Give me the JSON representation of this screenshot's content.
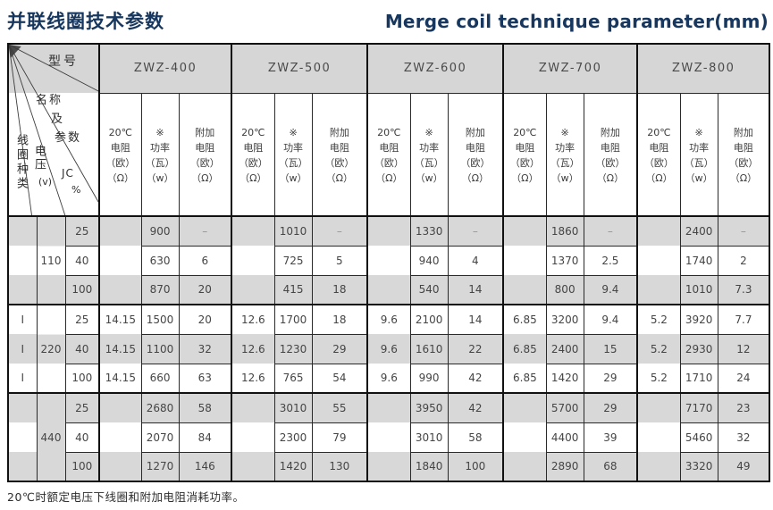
{
  "page": {
    "title_zh": "并联线圈技术参数",
    "title_en": "Merge coil technique parameter(mm)",
    "footnote": "20℃时额定电压下线圈和附加电阻消耗功率。"
  },
  "table": {
    "corner": {
      "model_label": "型号",
      "name_param_label_1": "名称",
      "name_param_label_2": "及",
      "name_param_label_3": "参数",
      "coil_type_label": "线圈种类",
      "voltage_label": "电压",
      "voltage_unit": "(v)",
      "jc_label": "JC",
      "jc_unit": "%"
    },
    "models": [
      "ZWZ-400",
      "ZWZ-500",
      "ZWZ-600",
      "ZWZ-700",
      "ZWZ-800"
    ],
    "sub_headers": {
      "resistance": [
        "20℃",
        "电阻",
        "（欧）",
        "（Ω）"
      ],
      "power": [
        "※",
        "功率",
        "（瓦）",
        "（w）"
      ],
      "extra": [
        "附加",
        "电阻",
        "（欧）",
        "（Ω）"
      ]
    },
    "groups": [
      {
        "coil_type": "",
        "voltage": "110",
        "rows": [
          {
            "jc": "25",
            "cells": [
              [
                "",
                "900",
                "–"
              ],
              [
                "",
                "1010",
                "–"
              ],
              [
                "",
                "1330",
                "–"
              ],
              [
                "",
                "1860",
                "–"
              ],
              [
                "",
                "2400",
                "–"
              ]
            ]
          },
          {
            "jc": "40",
            "cells": [
              [
                "",
                "630",
                "6"
              ],
              [
                "",
                "725",
                "5"
              ],
              [
                "",
                "940",
                "4"
              ],
              [
                "",
                "1370",
                "2.5"
              ],
              [
                "",
                "1740",
                "2"
              ]
            ]
          },
          {
            "jc": "100",
            "cells": [
              [
                "",
                "870",
                "20"
              ],
              [
                "",
                "415",
                "18"
              ],
              [
                "",
                "540",
                "14"
              ],
              [
                "",
                "800",
                "9.4"
              ],
              [
                "",
                "1010",
                "7.3"
              ]
            ]
          }
        ]
      },
      {
        "coil_type": "I",
        "voltage": "220",
        "rows": [
          {
            "jc": "25",
            "cells": [
              [
                "14.15",
                "1500",
                "20"
              ],
              [
                "12.6",
                "1700",
                "18"
              ],
              [
                "9.6",
                "2100",
                "14"
              ],
              [
                "6.85",
                "3200",
                "9.4"
              ],
              [
                "5.2",
                "3920",
                "7.7"
              ]
            ]
          },
          {
            "jc": "40",
            "cells": [
              [
                "14.15",
                "1100",
                "32"
              ],
              [
                "12.6",
                "1230",
                "29"
              ],
              [
                "9.6",
                "1610",
                "22"
              ],
              [
                "6.85",
                "2400",
                "15"
              ],
              [
                "5.2",
                "2930",
                "12"
              ]
            ]
          },
          {
            "jc": "100",
            "cells": [
              [
                "14.15",
                "660",
                "63"
              ],
              [
                "12.6",
                "765",
                "54"
              ],
              [
                "9.6",
                "990",
                "42"
              ],
              [
                "6.85",
                "1420",
                "29"
              ],
              [
                "5.2",
                "1710",
                "24"
              ]
            ]
          }
        ]
      },
      {
        "coil_type": "",
        "voltage": "440",
        "rows": [
          {
            "jc": "25",
            "cells": [
              [
                "",
                "2680",
                "58"
              ],
              [
                "",
                "3010",
                "55"
              ],
              [
                "",
                "3950",
                "42"
              ],
              [
                "",
                "5700",
                "29"
              ],
              [
                "",
                "7170",
                "23"
              ]
            ]
          },
          {
            "jc": "40",
            "cells": [
              [
                "",
                "2070",
                "84"
              ],
              [
                "",
                "2300",
                "79"
              ],
              [
                "",
                "3010",
                "58"
              ],
              [
                "",
                "4400",
                "39"
              ],
              [
                "",
                "5460",
                "32"
              ]
            ]
          },
          {
            "jc": "100",
            "cells": [
              [
                "",
                "1270",
                "146"
              ],
              [
                "",
                "1420",
                "130"
              ],
              [
                "",
                "1840",
                "100"
              ],
              [
                "",
                "2890",
                "68"
              ],
              [
                "",
                "3320",
                "49"
              ]
            ]
          }
        ]
      }
    ]
  }
}
